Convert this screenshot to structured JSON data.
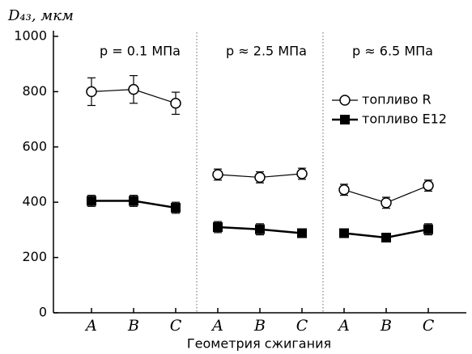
{
  "chart_data": {
    "type": "line",
    "ylabel": "D₄₃, мкм",
    "xlabel": "Геометрия сжигания",
    "categories": [
      "A",
      "B",
      "C",
      "A",
      "B",
      "C",
      "A",
      "B",
      "C"
    ],
    "group_labels": [
      "p = 0.1 МПа",
      "p ≈ 2.5 МПа",
      "p ≈ 6.5 МПа"
    ],
    "ylim": [
      0,
      1000
    ],
    "yticks": [
      0,
      200,
      400,
      600,
      800,
      1000
    ],
    "series": [
      {
        "name": "топливо R",
        "color": "#000000",
        "marker": "circle",
        "values": [
          800,
          808,
          758,
          500,
          490,
          503,
          445,
          398,
          460
        ],
        "errors": [
          50,
          50,
          40,
          20,
          20,
          20,
          20,
          20,
          20
        ]
      },
      {
        "name": "топливо E12",
        "color": "#000000",
        "marker": "square",
        "values": [
          405,
          405,
          380,
          310,
          302,
          288,
          288,
          272,
          302
        ],
        "errors": [
          20,
          20,
          20,
          20,
          20,
          15,
          15,
          15,
          20
        ]
      }
    ]
  }
}
